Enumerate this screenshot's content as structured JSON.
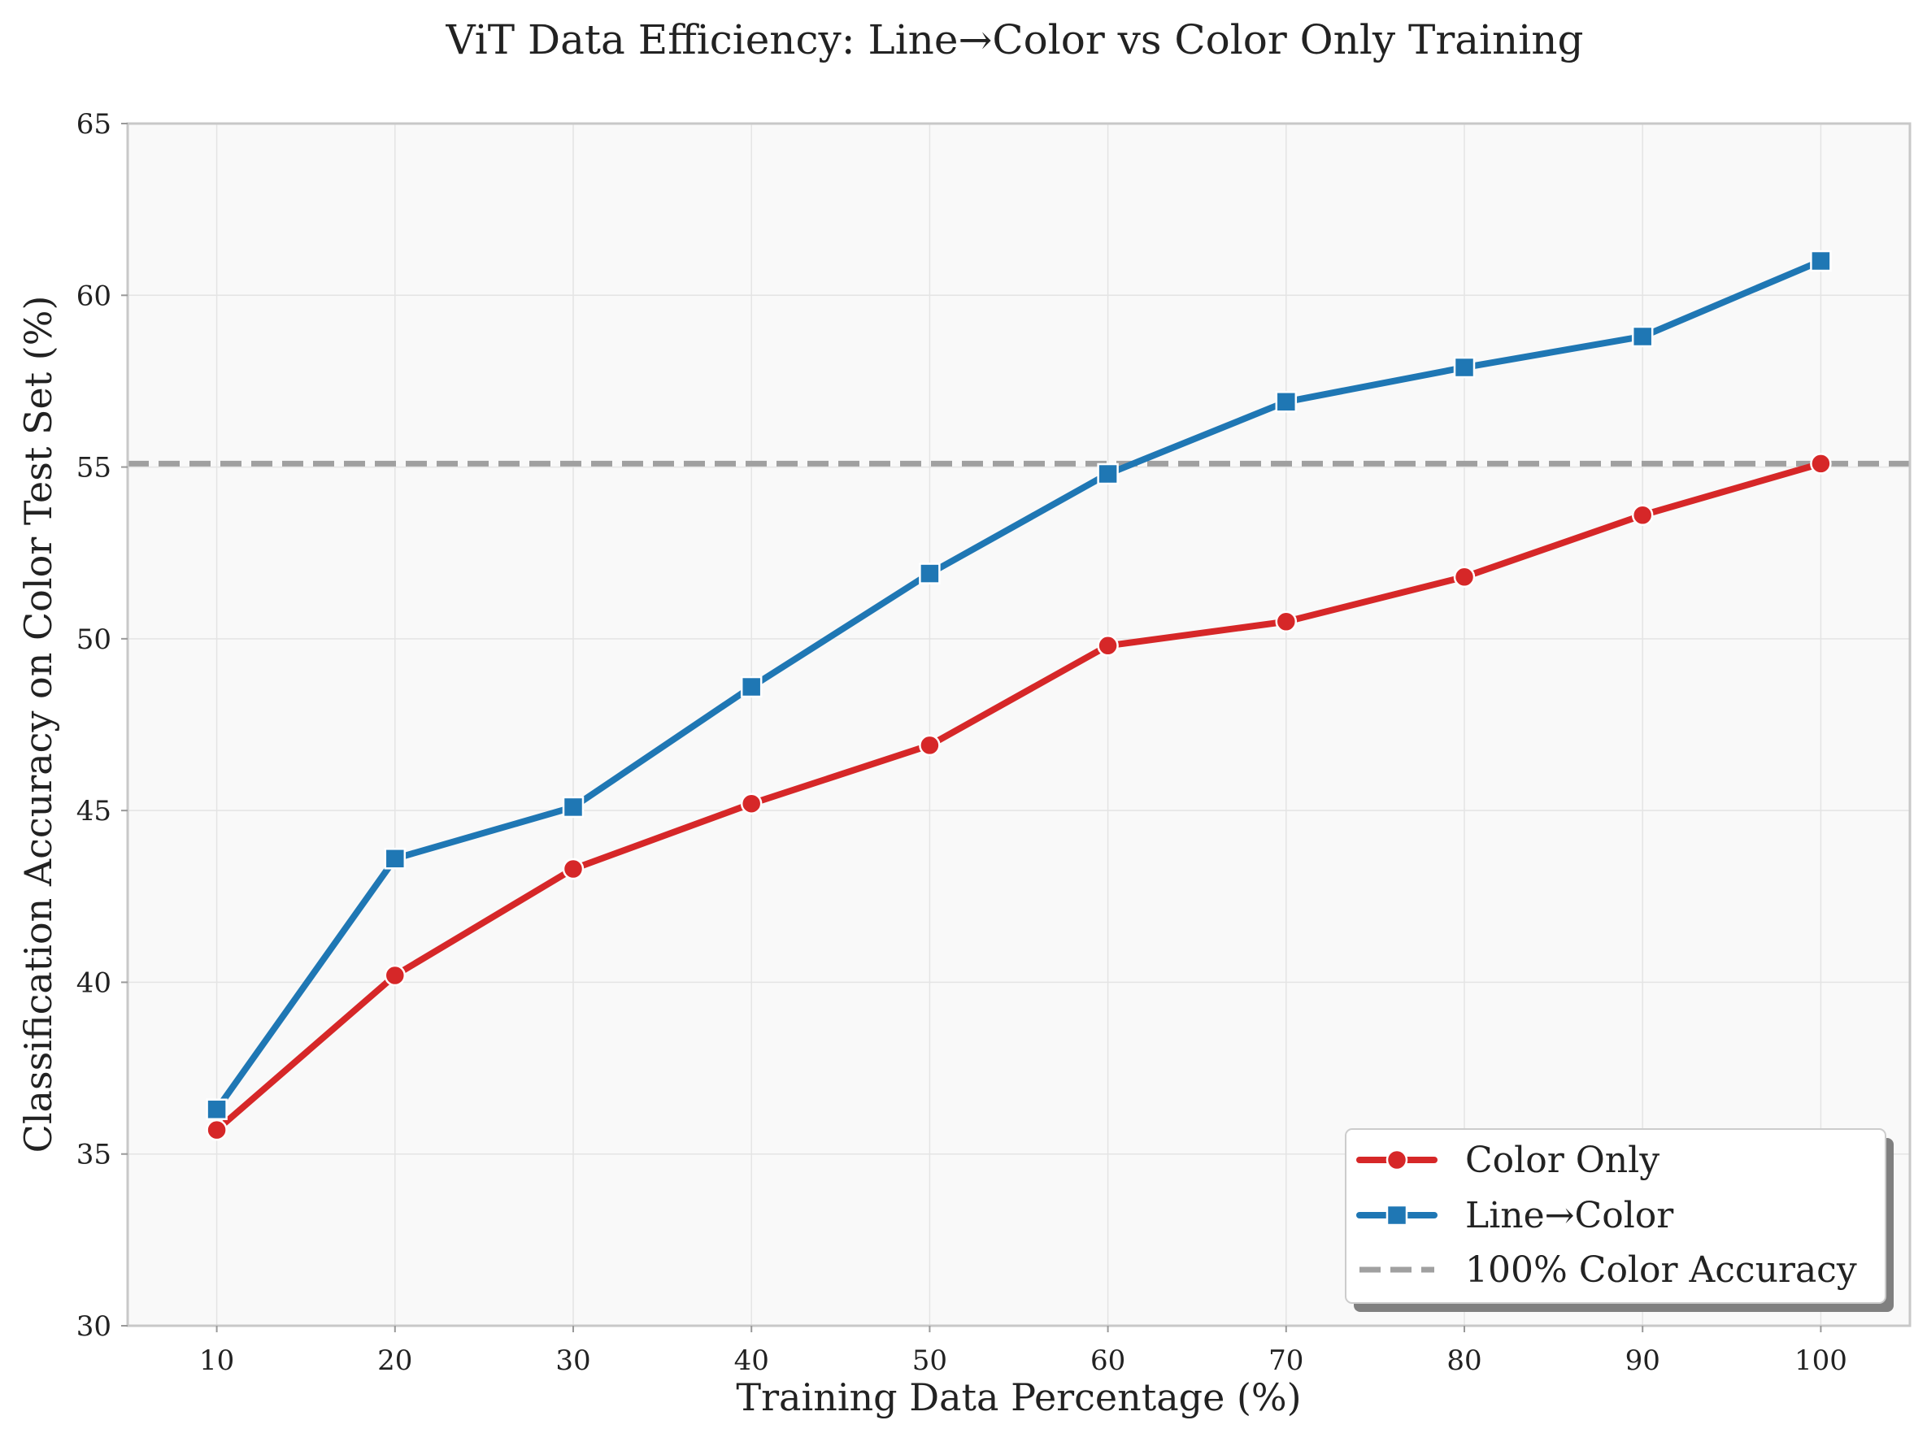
{
  "chart_data": {
    "type": "line",
    "title": "ViT Data Efficiency: Line→Color vs Color Only Training",
    "xlabel": "Training Data Percentage (%)",
    "ylabel": "Classification Accuracy on Color Test Set (%)",
    "x": [
      10,
      20,
      30,
      40,
      50,
      60,
      70,
      80,
      90,
      100
    ],
    "x_tick_labels": [
      "10",
      "20",
      "30",
      "40",
      "50",
      "60",
      "70",
      "80",
      "90",
      "100"
    ],
    "xlim": [
      5,
      105
    ],
    "ylim": [
      30,
      65
    ],
    "y_ticks": [
      30,
      35,
      40,
      45,
      50,
      55,
      60,
      65
    ],
    "y_tick_labels": [
      "30",
      "35",
      "40",
      "45",
      "50",
      "55",
      "60",
      "65"
    ],
    "grid": true,
    "series": [
      {
        "name": "Color Only",
        "color": "#d62728",
        "marker": "circle",
        "values": [
          35.7,
          40.2,
          43.3,
          45.2,
          46.9,
          49.8,
          50.5,
          51.8,
          53.6,
          55.1
        ]
      },
      {
        "name": "Line→Color",
        "color": "#1f77b4",
        "marker": "square",
        "values": [
          36.3,
          43.6,
          45.1,
          48.6,
          51.9,
          54.8,
          56.9,
          57.9,
          58.8,
          61.0
        ]
      }
    ],
    "reference_line": {
      "name": "100% Color Accuracy",
      "value": 55.1,
      "color": "#a0a0a0",
      "style": "dashed"
    },
    "legend": {
      "position": "lower-right",
      "entries": [
        "Color Only",
        "Line→Color",
        "100% Color Accuracy"
      ]
    }
  }
}
